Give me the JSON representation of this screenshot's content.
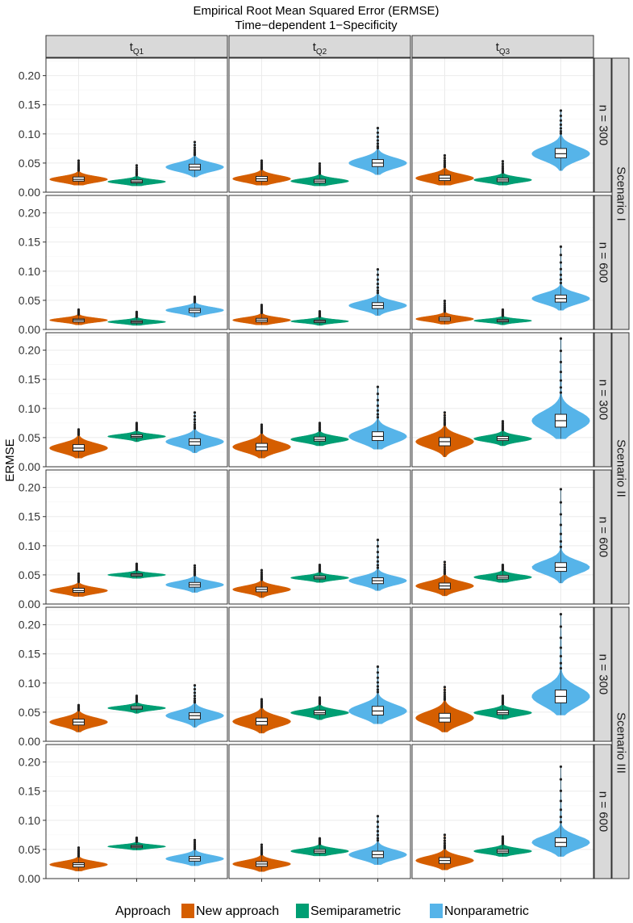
{
  "title": "Empirical Root Mean Squared Error (ERMSE)",
  "subtitle": "Time−dependent 1−Specificity",
  "ylabel": "ERMSE",
  "columns": [
    {
      "main": "t",
      "sub": "Q1"
    },
    {
      "main": "t",
      "sub": "Q2"
    },
    {
      "main": "t",
      "sub": "Q3"
    }
  ],
  "row_strips": [
    "n = 300",
    "n = 600",
    "n = 300",
    "n = 600",
    "n = 300",
    "n = 600"
  ],
  "scenario_strips": [
    "Scenario I",
    "Scenario II",
    "Scenario III"
  ],
  "legend": {
    "title": "Approach",
    "items": [
      {
        "label": "New approach",
        "color": "#D55E00"
      },
      {
        "label": "Semiparametric",
        "color": "#009E73"
      },
      {
        "label": "Nonparametric",
        "color": "#56B4E9"
      }
    ]
  },
  "chart_data": {
    "type": "violin",
    "title": "Empirical Root Mean Squared Error (ERMSE)",
    "subtitle": "Time−dependent 1−Specificity",
    "ylabel": "ERMSE",
    "ylim": [
      0,
      0.23
    ],
    "yticks": [
      "0.00",
      "0.05",
      "0.10",
      "0.15",
      "0.20"
    ],
    "grid": true,
    "legend_position": "bottom",
    "panels": [
      {
        "scenario": "Scenario I",
        "n": "n = 300",
        "column": "tQ1",
        "series": [
          {
            "approach": "New approach",
            "median": 0.022,
            "q1": 0.019,
            "q3": 0.026,
            "min": 0.012,
            "max": 0.054
          },
          {
            "approach": "Semiparametric",
            "median": 0.018,
            "q1": 0.016,
            "q3": 0.021,
            "min": 0.011,
            "max": 0.046
          },
          {
            "approach": "Nonparametric",
            "median": 0.043,
            "q1": 0.038,
            "q3": 0.048,
            "min": 0.026,
            "max": 0.086
          }
        ]
      },
      {
        "scenario": "Scenario I",
        "n": "n = 300",
        "column": "tQ2",
        "series": [
          {
            "approach": "New approach",
            "median": 0.023,
            "q1": 0.019,
            "q3": 0.027,
            "min": 0.012,
            "max": 0.054
          },
          {
            "approach": "Semiparametric",
            "median": 0.019,
            "q1": 0.016,
            "q3": 0.022,
            "min": 0.011,
            "max": 0.049
          },
          {
            "approach": "Nonparametric",
            "median": 0.05,
            "q1": 0.044,
            "q3": 0.056,
            "min": 0.03,
            "max": 0.11
          }
        ]
      },
      {
        "scenario": "Scenario I",
        "n": "n = 300",
        "column": "tQ3",
        "series": [
          {
            "approach": "New approach",
            "median": 0.024,
            "q1": 0.02,
            "q3": 0.029,
            "min": 0.012,
            "max": 0.063
          },
          {
            "approach": "Semiparametric",
            "median": 0.021,
            "q1": 0.018,
            "q3": 0.024,
            "min": 0.012,
            "max": 0.053
          },
          {
            "approach": "Nonparametric",
            "median": 0.066,
            "q1": 0.059,
            "q3": 0.075,
            "min": 0.037,
            "max": 0.14
          }
        ]
      },
      {
        "scenario": "Scenario I",
        "n": "n = 600",
        "column": "tQ1",
        "series": [
          {
            "approach": "New approach",
            "median": 0.016,
            "q1": 0.013,
            "q3": 0.018,
            "min": 0.008,
            "max": 0.034
          },
          {
            "approach": "Semiparametric",
            "median": 0.013,
            "q1": 0.011,
            "q3": 0.015,
            "min": 0.007,
            "max": 0.03
          },
          {
            "approach": "Nonparametric",
            "median": 0.033,
            "q1": 0.029,
            "q3": 0.036,
            "min": 0.021,
            "max": 0.056
          }
        ]
      },
      {
        "scenario": "Scenario I",
        "n": "n = 600",
        "column": "tQ2",
        "series": [
          {
            "approach": "New approach",
            "median": 0.016,
            "q1": 0.013,
            "q3": 0.019,
            "min": 0.008,
            "max": 0.042
          },
          {
            "approach": "Semiparametric",
            "median": 0.014,
            "q1": 0.012,
            "q3": 0.016,
            "min": 0.007,
            "max": 0.031
          },
          {
            "approach": "Nonparametric",
            "median": 0.041,
            "q1": 0.036,
            "q3": 0.046,
            "min": 0.024,
            "max": 0.103
          }
        ]
      },
      {
        "scenario": "Scenario I",
        "n": "n = 600",
        "column": "tQ3",
        "series": [
          {
            "approach": "New approach",
            "median": 0.018,
            "q1": 0.015,
            "q3": 0.021,
            "min": 0.009,
            "max": 0.049
          },
          {
            "approach": "Semiparametric",
            "median": 0.015,
            "q1": 0.013,
            "q3": 0.017,
            "min": 0.008,
            "max": 0.034
          },
          {
            "approach": "Nonparametric",
            "median": 0.053,
            "q1": 0.047,
            "q3": 0.059,
            "min": 0.033,
            "max": 0.142
          }
        ]
      },
      {
        "scenario": "Scenario II",
        "n": "n = 300",
        "column": "tQ1",
        "series": [
          {
            "approach": "New approach",
            "median": 0.032,
            "q1": 0.027,
            "q3": 0.038,
            "min": 0.015,
            "max": 0.064
          },
          {
            "approach": "Semiparametric",
            "median": 0.052,
            "q1": 0.05,
            "q3": 0.055,
            "min": 0.043,
            "max": 0.075
          },
          {
            "approach": "Nonparametric",
            "median": 0.043,
            "q1": 0.037,
            "q3": 0.048,
            "min": 0.024,
            "max": 0.093
          }
        ]
      },
      {
        "scenario": "Scenario II",
        "n": "n = 300",
        "column": "tQ2",
        "series": [
          {
            "approach": "New approach",
            "median": 0.034,
            "q1": 0.028,
            "q3": 0.04,
            "min": 0.015,
            "max": 0.072
          },
          {
            "approach": "Semiparametric",
            "median": 0.047,
            "q1": 0.044,
            "q3": 0.051,
            "min": 0.036,
            "max": 0.075
          },
          {
            "approach": "Nonparametric",
            "median": 0.052,
            "q1": 0.045,
            "q3": 0.06,
            "min": 0.03,
            "max": 0.137
          }
        ]
      },
      {
        "scenario": "Scenario II",
        "n": "n = 300",
        "column": "tQ3",
        "series": [
          {
            "approach": "New approach",
            "median": 0.043,
            "q1": 0.036,
            "q3": 0.05,
            "min": 0.017,
            "max": 0.093
          },
          {
            "approach": "Semiparametric",
            "median": 0.048,
            "q1": 0.045,
            "q3": 0.052,
            "min": 0.036,
            "max": 0.078
          },
          {
            "approach": "Nonparametric",
            "median": 0.079,
            "q1": 0.068,
            "q3": 0.09,
            "min": 0.048,
            "max": 0.22
          }
        ]
      },
      {
        "scenario": "Scenario II",
        "n": "n = 600",
        "column": "tQ1",
        "series": [
          {
            "approach": "New approach",
            "median": 0.023,
            "q1": 0.02,
            "q3": 0.027,
            "min": 0.013,
            "max": 0.052
          },
          {
            "approach": "Semiparametric",
            "median": 0.05,
            "q1": 0.048,
            "q3": 0.052,
            "min": 0.044,
            "max": 0.069
          },
          {
            "approach": "Nonparametric",
            "median": 0.033,
            "q1": 0.029,
            "q3": 0.037,
            "min": 0.02,
            "max": 0.066
          }
        ]
      },
      {
        "scenario": "Scenario II",
        "n": "n = 600",
        "column": "tQ2",
        "series": [
          {
            "approach": "New approach",
            "median": 0.025,
            "q1": 0.021,
            "q3": 0.029,
            "min": 0.011,
            "max": 0.058
          },
          {
            "approach": "Semiparametric",
            "median": 0.045,
            "q1": 0.043,
            "q3": 0.048,
            "min": 0.037,
            "max": 0.067
          },
          {
            "approach": "Nonparametric",
            "median": 0.04,
            "q1": 0.035,
            "q3": 0.045,
            "min": 0.023,
            "max": 0.11
          }
        ]
      },
      {
        "scenario": "Scenario II",
        "n": "n = 600",
        "column": "tQ3",
        "series": [
          {
            "approach": "New approach",
            "median": 0.031,
            "q1": 0.026,
            "q3": 0.036,
            "min": 0.014,
            "max": 0.072
          },
          {
            "approach": "Semiparametric",
            "median": 0.046,
            "q1": 0.043,
            "q3": 0.049,
            "min": 0.037,
            "max": 0.067
          },
          {
            "approach": "Nonparametric",
            "median": 0.063,
            "q1": 0.056,
            "q3": 0.071,
            "min": 0.036,
            "max": 0.197
          }
        ]
      },
      {
        "scenario": "Scenario III",
        "n": "n = 300",
        "column": "tQ1",
        "series": [
          {
            "approach": "New approach",
            "median": 0.033,
            "q1": 0.028,
            "q3": 0.038,
            "min": 0.016,
            "max": 0.062
          },
          {
            "approach": "Semiparametric",
            "median": 0.057,
            "q1": 0.055,
            "q3": 0.06,
            "min": 0.048,
            "max": 0.078
          },
          {
            "approach": "Nonparametric",
            "median": 0.044,
            "q1": 0.038,
            "q3": 0.049,
            "min": 0.024,
            "max": 0.096
          }
        ]
      },
      {
        "scenario": "Scenario III",
        "n": "n = 300",
        "column": "tQ2",
        "series": [
          {
            "approach": "New approach",
            "median": 0.034,
            "q1": 0.028,
            "q3": 0.04,
            "min": 0.014,
            "max": 0.072
          },
          {
            "approach": "Semiparametric",
            "median": 0.049,
            "q1": 0.046,
            "q3": 0.053,
            "min": 0.037,
            "max": 0.075
          },
          {
            "approach": "Nonparametric",
            "median": 0.052,
            "q1": 0.045,
            "q3": 0.06,
            "min": 0.03,
            "max": 0.128
          }
        ]
      },
      {
        "scenario": "Scenario III",
        "n": "n = 300",
        "column": "tQ3",
        "series": [
          {
            "approach": "New approach",
            "median": 0.04,
            "q1": 0.033,
            "q3": 0.048,
            "min": 0.016,
            "max": 0.093
          },
          {
            "approach": "Semiparametric",
            "median": 0.049,
            "q1": 0.046,
            "q3": 0.053,
            "min": 0.038,
            "max": 0.078
          },
          {
            "approach": "Nonparametric",
            "median": 0.077,
            "q1": 0.066,
            "q3": 0.088,
            "min": 0.045,
            "max": 0.218
          }
        ]
      },
      {
        "scenario": "Scenario III",
        "n": "n = 600",
        "column": "tQ1",
        "series": [
          {
            "approach": "New approach",
            "median": 0.024,
            "q1": 0.02,
            "q3": 0.027,
            "min": 0.013,
            "max": 0.053
          },
          {
            "approach": "Semiparametric",
            "median": 0.055,
            "q1": 0.053,
            "q3": 0.057,
            "min": 0.049,
            "max": 0.07
          },
          {
            "approach": "Nonparametric",
            "median": 0.034,
            "q1": 0.03,
            "q3": 0.038,
            "min": 0.022,
            "max": 0.066
          }
        ]
      },
      {
        "scenario": "Scenario III",
        "n": "n = 600",
        "column": "tQ2",
        "series": [
          {
            "approach": "New approach",
            "median": 0.025,
            "q1": 0.021,
            "q3": 0.029,
            "min": 0.012,
            "max": 0.058
          },
          {
            "approach": "Semiparametric",
            "median": 0.047,
            "q1": 0.044,
            "q3": 0.05,
            "min": 0.039,
            "max": 0.069
          },
          {
            "approach": "Nonparametric",
            "median": 0.041,
            "q1": 0.036,
            "q3": 0.047,
            "min": 0.024,
            "max": 0.107
          }
        ]
      },
      {
        "scenario": "Scenario III",
        "n": "n = 600",
        "column": "tQ3",
        "series": [
          {
            "approach": "New approach",
            "median": 0.031,
            "q1": 0.026,
            "q3": 0.036,
            "min": 0.015,
            "max": 0.075
          },
          {
            "approach": "Semiparametric",
            "median": 0.047,
            "q1": 0.044,
            "q3": 0.05,
            "min": 0.038,
            "max": 0.072
          },
          {
            "approach": "Nonparametric",
            "median": 0.062,
            "q1": 0.055,
            "q3": 0.07,
            "min": 0.038,
            "max": 0.192
          }
        ]
      }
    ]
  }
}
